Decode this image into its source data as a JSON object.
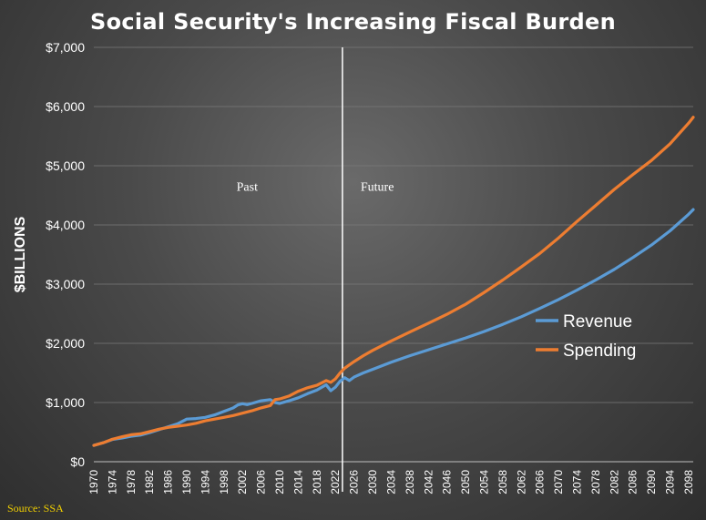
{
  "chart_data": {
    "type": "line",
    "title": "Social Security's Increasing Fiscal Burden",
    "ylabel": "$BILLIONS",
    "xlabel": "",
    "ylim": [
      0,
      7000
    ],
    "xlim": [
      1970,
      2099
    ],
    "yticks": [
      {
        "value": 0,
        "label": "$0"
      },
      {
        "value": 1000,
        "label": "$1,000"
      },
      {
        "value": 2000,
        "label": "$2,000"
      },
      {
        "value": 3000,
        "label": "$3,000"
      },
      {
        "value": 4000,
        "label": "$4,000"
      },
      {
        "value": 5000,
        "label": "$5,000"
      },
      {
        "value": 6000,
        "label": "$6,000"
      },
      {
        "value": 7000,
        "label": "$7,000"
      }
    ],
    "xticks": [
      1970,
      1974,
      1978,
      1982,
      1986,
      1990,
      1994,
      1998,
      2002,
      2006,
      2010,
      2014,
      2018,
      2022,
      2026,
      2030,
      2034,
      2038,
      2042,
      2046,
      2050,
      2054,
      2058,
      2062,
      2066,
      2070,
      2074,
      2078,
      2082,
      2086,
      2090,
      2094,
      2098
    ],
    "divider_year": 2023.5,
    "annotations": [
      {
        "text": "Past",
        "x": 2003,
        "y": 4580
      },
      {
        "text": "Future",
        "x": 2031,
        "y": 4580
      }
    ],
    "legend_position": "right",
    "grid": true,
    "series": [
      {
        "name": "Revenue",
        "color": "#5b9bd5",
        "points": [
          [
            1970,
            275
          ],
          [
            1972,
            320
          ],
          [
            1974,
            375
          ],
          [
            1976,
            400
          ],
          [
            1978,
            430
          ],
          [
            1980,
            450
          ],
          [
            1982,
            490
          ],
          [
            1984,
            540
          ],
          [
            1986,
            590
          ],
          [
            1988,
            640
          ],
          [
            1989,
            680
          ],
          [
            1990,
            720
          ],
          [
            1992,
            730
          ],
          [
            1994,
            750
          ],
          [
            1996,
            790
          ],
          [
            1998,
            850
          ],
          [
            2000,
            910
          ],
          [
            2001,
            960
          ],
          [
            2002,
            980
          ],
          [
            2003,
            965
          ],
          [
            2004,
            985
          ],
          [
            2006,
            1030
          ],
          [
            2008,
            1050
          ],
          [
            2009,
            1000
          ],
          [
            2010,
            985
          ],
          [
            2012,
            1030
          ],
          [
            2014,
            1080
          ],
          [
            2016,
            1150
          ],
          [
            2018,
            1210
          ],
          [
            2020,
            1300
          ],
          [
            2021,
            1200
          ],
          [
            2022,
            1260
          ],
          [
            2023,
            1360
          ],
          [
            2024,
            1420
          ],
          [
            2025,
            1370
          ],
          [
            2026,
            1430
          ],
          [
            2028,
            1500
          ],
          [
            2030,
            1560
          ],
          [
            2034,
            1680
          ],
          [
            2038,
            1790
          ],
          [
            2042,
            1890
          ],
          [
            2046,
            1990
          ],
          [
            2050,
            2090
          ],
          [
            2054,
            2200
          ],
          [
            2058,
            2320
          ],
          [
            2062,
            2450
          ],
          [
            2066,
            2590
          ],
          [
            2070,
            2740
          ],
          [
            2074,
            2900
          ],
          [
            2078,
            3070
          ],
          [
            2082,
            3250
          ],
          [
            2086,
            3450
          ],
          [
            2090,
            3660
          ],
          [
            2094,
            3900
          ],
          [
            2098,
            4180
          ],
          [
            2099,
            4260
          ]
        ]
      },
      {
        "name": "Spending",
        "color": "#ed7d31",
        "points": [
          [
            1970,
            275
          ],
          [
            1972,
            320
          ],
          [
            1974,
            380
          ],
          [
            1976,
            420
          ],
          [
            1978,
            455
          ],
          [
            1980,
            470
          ],
          [
            1982,
            510
          ],
          [
            1984,
            550
          ],
          [
            1986,
            580
          ],
          [
            1988,
            600
          ],
          [
            1990,
            620
          ],
          [
            1992,
            650
          ],
          [
            1994,
            690
          ],
          [
            1996,
            720
          ],
          [
            1998,
            750
          ],
          [
            2000,
            780
          ],
          [
            2002,
            820
          ],
          [
            2004,
            860
          ],
          [
            2006,
            910
          ],
          [
            2008,
            950
          ],
          [
            2009,
            1050
          ],
          [
            2010,
            1060
          ],
          [
            2012,
            1110
          ],
          [
            2014,
            1190
          ],
          [
            2016,
            1250
          ],
          [
            2018,
            1290
          ],
          [
            2020,
            1370
          ],
          [
            2021,
            1340
          ],
          [
            2022,
            1400
          ],
          [
            2023,
            1500
          ],
          [
            2024,
            1580
          ],
          [
            2026,
            1690
          ],
          [
            2028,
            1790
          ],
          [
            2030,
            1880
          ],
          [
            2034,
            2040
          ],
          [
            2038,
            2190
          ],
          [
            2042,
            2340
          ],
          [
            2046,
            2490
          ],
          [
            2050,
            2660
          ],
          [
            2054,
            2860
          ],
          [
            2058,
            3070
          ],
          [
            2062,
            3290
          ],
          [
            2066,
            3520
          ],
          [
            2070,
            3780
          ],
          [
            2074,
            4060
          ],
          [
            2078,
            4330
          ],
          [
            2082,
            4600
          ],
          [
            2086,
            4850
          ],
          [
            2090,
            5090
          ],
          [
            2094,
            5370
          ],
          [
            2098,
            5720
          ],
          [
            2099,
            5820
          ]
        ]
      }
    ],
    "source": "Source: SSA"
  }
}
